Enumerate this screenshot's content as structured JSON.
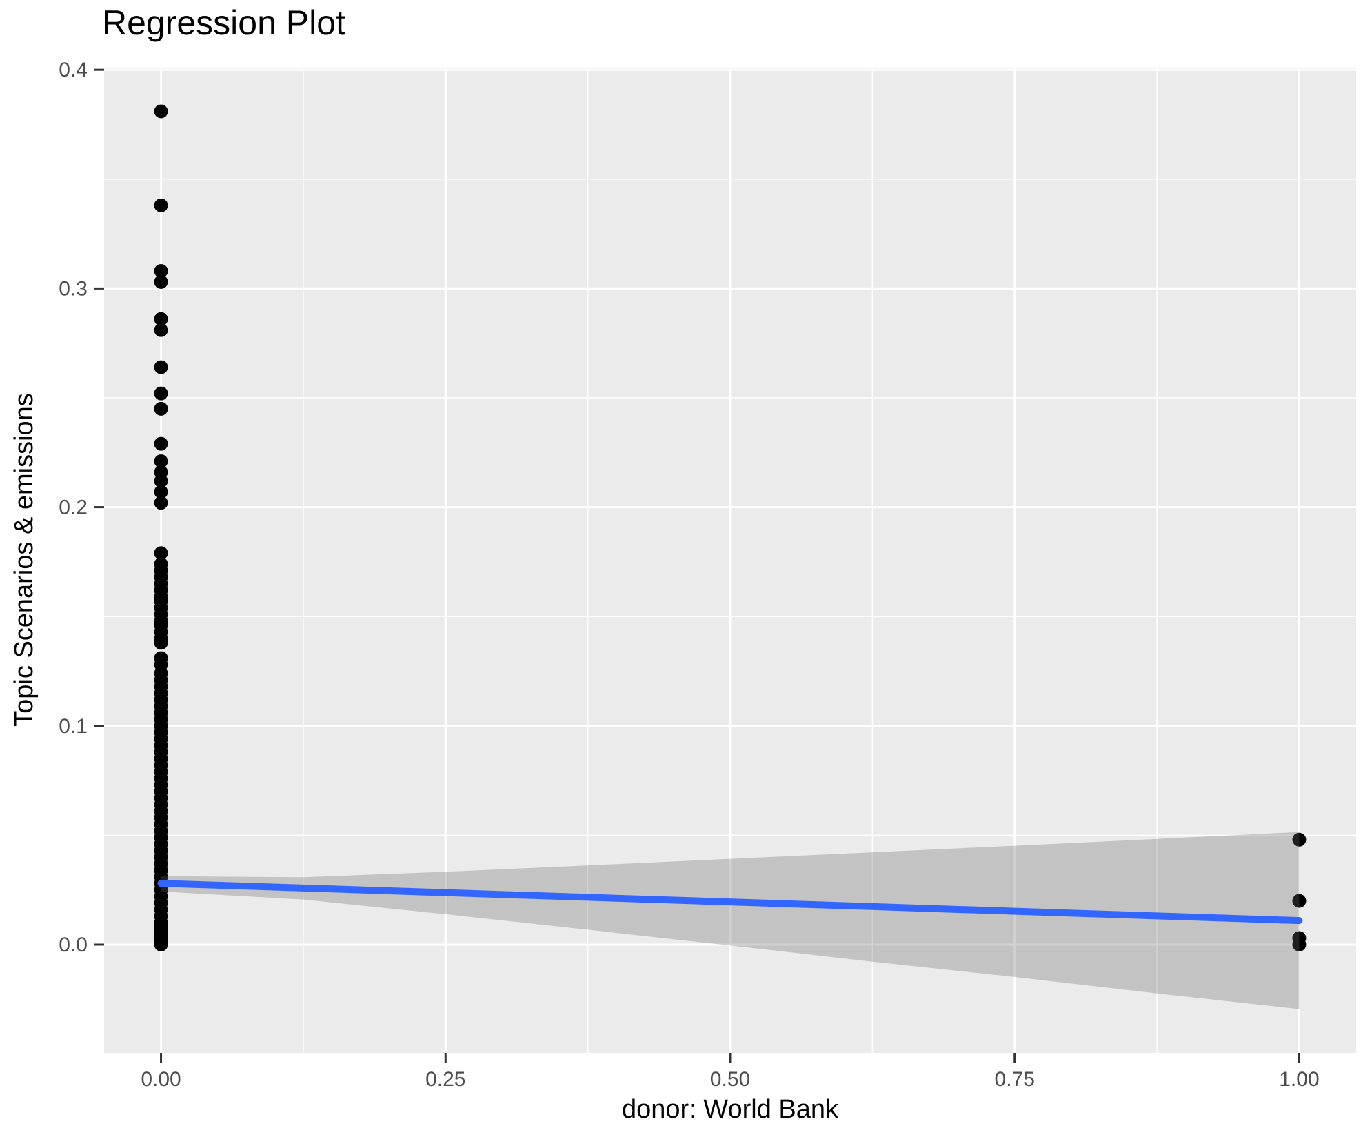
{
  "chart_data": {
    "type": "scatter",
    "title": "Regression Plot",
    "xlabel": "donor: World Bank",
    "ylabel": "Topic Scenarios & emissions",
    "xlim": [
      -0.05,
      1.05
    ],
    "ylim": [
      -0.0495,
      0.401
    ],
    "grid": true,
    "legend": "none",
    "x_axis": {
      "ticks": [
        {
          "value": 0.0,
          "label": "0.00"
        },
        {
          "value": 0.25,
          "label": "0.25"
        },
        {
          "value": 0.5,
          "label": "0.50"
        },
        {
          "value": 0.75,
          "label": "0.75"
        },
        {
          "value": 1.0,
          "label": "1.00"
        }
      ],
      "minor_ticks": [
        0.125,
        0.375,
        0.625,
        0.875
      ]
    },
    "y_axis": {
      "ticks": [
        {
          "value": 0.0,
          "label": "0.0"
        },
        {
          "value": 0.1,
          "label": "0.1"
        },
        {
          "value": 0.2,
          "label": "0.2"
        },
        {
          "value": 0.3,
          "label": "0.3"
        },
        {
          "value": 0.4,
          "label": "0.4"
        }
      ],
      "minor_ticks": [
        0.05,
        0.15,
        0.25,
        0.35
      ]
    },
    "colors": {
      "panel_background": "#EBEBEB",
      "gridline": "#FFFFFF",
      "point": "#000000",
      "regression_line": "#3366FF",
      "ci_band": "rgba(102,102,102,0.30)",
      "tick_mark": "#333333",
      "tick_label": "#4D4D4D",
      "title_text": "#000000"
    },
    "series": [
      {
        "name": "observations at donor = 0",
        "x": 0,
        "y": [
          0.381,
          0.338,
          0.308,
          0.303,
          0.286,
          0.281,
          0.264,
          0.252,
          0.245,
          0.229,
          0.221,
          0.216,
          0.212,
          0.207,
          0.202,
          0.179,
          0.174,
          0.171,
          0.168,
          0.165,
          0.162,
          0.159,
          0.157,
          0.154,
          0.151,
          0.148,
          0.146,
          0.143,
          0.14,
          0.138,
          0.131,
          0.128,
          0.124,
          0.121,
          0.118,
          0.115,
          0.112,
          0.109,
          0.106,
          0.103,
          0.1,
          0.097,
          0.094,
          0.091,
          0.088,
          0.085,
          0.082,
          0.079,
          0.076,
          0.073,
          0.07,
          0.067,
          0.064,
          0.061,
          0.058,
          0.055,
          0.052,
          0.049,
          0.046,
          0.043,
          0.04,
          0.037,
          0.034,
          0.031,
          0.028,
          0.025,
          0.022,
          0.019,
          0.016,
          0.013,
          0.01,
          0.008,
          0.006,
          0.004,
          0.002,
          0.0
        ]
      },
      {
        "name": "observations at donor = 1",
        "x": 1,
        "y": [
          0.048,
          0.02,
          0.003,
          0.0
        ]
      }
    ],
    "regression_line": {
      "x": [
        0,
        1
      ],
      "y": [
        0.028,
        0.011
      ]
    },
    "ci_band": {
      "x": [
        0.0,
        0.125,
        0.25,
        0.375,
        0.5,
        0.625,
        0.75,
        0.875,
        1.0
      ],
      "upper": [
        0.0313,
        0.0308,
        0.0333,
        0.0362,
        0.0392,
        0.0422,
        0.0452,
        0.0483,
        0.0515
      ],
      "lower": [
        0.0243,
        0.0206,
        0.0139,
        0.0068,
        -0.0004,
        -0.0078,
        -0.0148,
        -0.0223,
        -0.0295
      ]
    }
  }
}
